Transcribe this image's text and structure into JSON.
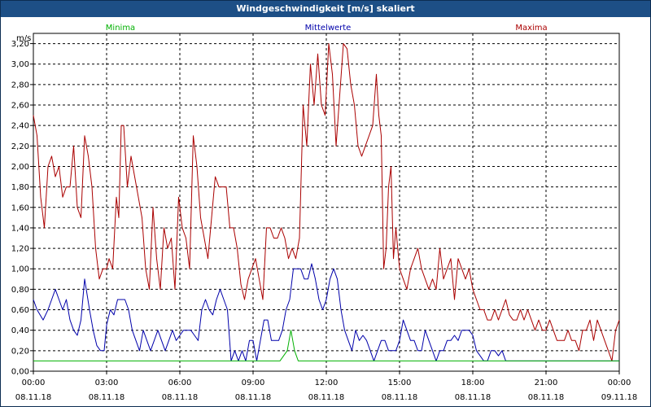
{
  "window": {
    "title": "Windgeschwindigkeit [m/s] skaliert"
  },
  "chart_data": {
    "type": "line",
    "title": "Windgeschwindigkeit [m/s] skaliert",
    "ylabel": "m/s",
    "ylim": [
      0,
      3.3
    ],
    "xlim": [
      0,
      24
    ],
    "grid": true,
    "legend_placement": "top",
    "y_ticks": [
      "0,00",
      "0,20",
      "0,40",
      "0,60",
      "0,80",
      "1,00",
      "1,20",
      "1,40",
      "1,60",
      "1,80",
      "2,00",
      "2,20",
      "2,40",
      "2,60",
      "2,80",
      "3,00",
      "3,20"
    ],
    "x_ticks": [
      {
        "time": "00:00",
        "date": "08.11.18"
      },
      {
        "time": "03:00",
        "date": "08.11.18"
      },
      {
        "time": "06:00",
        "date": "08.11.18"
      },
      {
        "time": "09:00",
        "date": "08.11.18"
      },
      {
        "time": "12:00",
        "date": "08.11.18"
      },
      {
        "time": "15:00",
        "date": "08.11.18"
      },
      {
        "time": "18:00",
        "date": "08.11.18"
      },
      {
        "time": "21:00",
        "date": "08.11.18"
      },
      {
        "time": "00:00",
        "date": "09.11.18"
      }
    ],
    "series": [
      {
        "name": "Minima",
        "color": "#00b000",
        "points": [
          [
            0,
            0.1
          ],
          [
            10.1,
            0.1
          ],
          [
            10.4,
            0.2
          ],
          [
            10.55,
            0.4
          ],
          [
            10.7,
            0.2
          ],
          [
            10.85,
            0.1
          ],
          [
            24,
            0.1
          ]
        ]
      },
      {
        "name": "Mittelwerte",
        "color": "#0000aa",
        "points": [
          [
            0,
            0.7
          ],
          [
            0.15,
            0.6
          ],
          [
            0.4,
            0.5
          ],
          [
            0.6,
            0.6
          ],
          [
            0.75,
            0.7
          ],
          [
            0.9,
            0.8
          ],
          [
            1.05,
            0.7
          ],
          [
            1.2,
            0.6
          ],
          [
            1.35,
            0.7
          ],
          [
            1.5,
            0.5
          ],
          [
            1.65,
            0.4
          ],
          [
            1.8,
            0.35
          ],
          [
            1.95,
            0.5
          ],
          [
            2.1,
            0.9
          ],
          [
            2.3,
            0.6
          ],
          [
            2.45,
            0.4
          ],
          [
            2.6,
            0.25
          ],
          [
            2.75,
            0.2
          ],
          [
            2.9,
            0.2
          ],
          [
            3.0,
            0.45
          ],
          [
            3.15,
            0.6
          ],
          [
            3.3,
            0.55
          ],
          [
            3.45,
            0.7
          ],
          [
            3.6,
            0.7
          ],
          [
            3.75,
            0.7
          ],
          [
            3.9,
            0.6
          ],
          [
            4.05,
            0.4
          ],
          [
            4.2,
            0.3
          ],
          [
            4.35,
            0.2
          ],
          [
            4.5,
            0.4
          ],
          [
            4.65,
            0.3
          ],
          [
            4.8,
            0.2
          ],
          [
            4.95,
            0.3
          ],
          [
            5.1,
            0.4
          ],
          [
            5.25,
            0.3
          ],
          [
            5.4,
            0.2
          ],
          [
            5.55,
            0.3
          ],
          [
            5.7,
            0.4
          ],
          [
            5.85,
            0.3
          ],
          [
            6.0,
            0.35
          ],
          [
            6.15,
            0.4
          ],
          [
            6.3,
            0.4
          ],
          [
            6.45,
            0.4
          ],
          [
            6.6,
            0.35
          ],
          [
            6.75,
            0.3
          ],
          [
            6.9,
            0.6
          ],
          [
            7.05,
            0.7
          ],
          [
            7.2,
            0.6
          ],
          [
            7.35,
            0.55
          ],
          [
            7.5,
            0.7
          ],
          [
            7.65,
            0.8
          ],
          [
            7.8,
            0.7
          ],
          [
            7.95,
            0.6
          ],
          [
            8.1,
            0.1
          ],
          [
            8.25,
            0.2
          ],
          [
            8.4,
            0.1
          ],
          [
            8.55,
            0.2
          ],
          [
            8.7,
            0.1
          ],
          [
            8.85,
            0.3
          ],
          [
            9.0,
            0.3
          ],
          [
            9.15,
            0.1
          ],
          [
            9.3,
            0.3
          ],
          [
            9.45,
            0.5
          ],
          [
            9.6,
            0.5
          ],
          [
            9.75,
            0.3
          ],
          [
            9.9,
            0.3
          ],
          [
            10.05,
            0.3
          ],
          [
            10.2,
            0.4
          ],
          [
            10.35,
            0.6
          ],
          [
            10.5,
            0.7
          ],
          [
            10.65,
            1.0
          ],
          [
            10.8,
            1.0
          ],
          [
            10.95,
            1.0
          ],
          [
            11.1,
            0.9
          ],
          [
            11.25,
            0.9
          ],
          [
            11.4,
            1.05
          ],
          [
            11.55,
            0.9
          ],
          [
            11.7,
            0.7
          ],
          [
            11.85,
            0.6
          ],
          [
            12.0,
            0.7
          ],
          [
            12.15,
            0.9
          ],
          [
            12.3,
            1.0
          ],
          [
            12.45,
            0.9
          ],
          [
            12.6,
            0.6
          ],
          [
            12.75,
            0.4
          ],
          [
            12.9,
            0.3
          ],
          [
            13.05,
            0.2
          ],
          [
            13.2,
            0.4
          ],
          [
            13.35,
            0.3
          ],
          [
            13.5,
            0.35
          ],
          [
            13.65,
            0.3
          ],
          [
            13.8,
            0.2
          ],
          [
            13.95,
            0.1
          ],
          [
            14.1,
            0.2
          ],
          [
            14.25,
            0.3
          ],
          [
            14.4,
            0.3
          ],
          [
            14.55,
            0.2
          ],
          [
            14.7,
            0.2
          ],
          [
            14.85,
            0.2
          ],
          [
            15.0,
            0.3
          ],
          [
            15.15,
            0.5
          ],
          [
            15.3,
            0.4
          ],
          [
            15.45,
            0.3
          ],
          [
            15.6,
            0.3
          ],
          [
            15.75,
            0.2
          ],
          [
            15.9,
            0.2
          ],
          [
            16.05,
            0.4
          ],
          [
            16.2,
            0.3
          ],
          [
            16.35,
            0.2
          ],
          [
            16.5,
            0.1
          ],
          [
            16.65,
            0.2
          ],
          [
            16.8,
            0.2
          ],
          [
            16.95,
            0.3
          ],
          [
            17.1,
            0.3
          ],
          [
            17.25,
            0.35
          ],
          [
            17.4,
            0.3
          ],
          [
            17.55,
            0.4
          ],
          [
            17.7,
            0.4
          ],
          [
            17.85,
            0.4
          ],
          [
            18.0,
            0.35
          ],
          [
            18.15,
            0.2
          ],
          [
            18.3,
            0.15
          ],
          [
            18.45,
            0.1
          ],
          [
            18.6,
            0.1
          ],
          [
            18.75,
            0.2
          ],
          [
            18.9,
            0.2
          ],
          [
            19.05,
            0.15
          ],
          [
            19.2,
            0.2
          ],
          [
            19.35,
            0.1
          ],
          [
            24,
            0.1
          ]
        ]
      },
      {
        "name": "Maxima",
        "color": "#aa0000",
        "points": [
          [
            0,
            2.5
          ],
          [
            0.15,
            2.3
          ],
          [
            0.3,
            1.7
          ],
          [
            0.45,
            1.4
          ],
          [
            0.6,
            2.0
          ],
          [
            0.75,
            2.1
          ],
          [
            0.9,
            1.9
          ],
          [
            1.05,
            2.0
          ],
          [
            1.2,
            1.7
          ],
          [
            1.35,
            1.8
          ],
          [
            1.5,
            1.8
          ],
          [
            1.65,
            2.2
          ],
          [
            1.8,
            1.6
          ],
          [
            1.95,
            1.5
          ],
          [
            2.1,
            2.3
          ],
          [
            2.25,
            2.1
          ],
          [
            2.4,
            1.8
          ],
          [
            2.55,
            1.2
          ],
          [
            2.7,
            0.9
          ],
          [
            2.85,
            1.0
          ],
          [
            3.0,
            1.0
          ],
          [
            3.1,
            1.1
          ],
          [
            3.25,
            1.0
          ],
          [
            3.4,
            1.7
          ],
          [
            3.5,
            1.5
          ],
          [
            3.6,
            2.4
          ],
          [
            3.7,
            2.4
          ],
          [
            3.85,
            1.8
          ],
          [
            4.0,
            2.1
          ],
          [
            4.15,
            1.9
          ],
          [
            4.3,
            1.7
          ],
          [
            4.45,
            1.5
          ],
          [
            4.6,
            1.0
          ],
          [
            4.75,
            0.8
          ],
          [
            4.9,
            1.6
          ],
          [
            5.05,
            1.1
          ],
          [
            5.2,
            0.8
          ],
          [
            5.35,
            1.4
          ],
          [
            5.5,
            1.2
          ],
          [
            5.65,
            1.3
          ],
          [
            5.8,
            0.8
          ],
          [
            5.95,
            1.7
          ],
          [
            6.1,
            1.4
          ],
          [
            6.25,
            1.3
          ],
          [
            6.4,
            1.0
          ],
          [
            6.55,
            2.3
          ],
          [
            6.7,
            2.0
          ],
          [
            6.85,
            1.5
          ],
          [
            7.0,
            1.3
          ],
          [
            7.15,
            1.1
          ],
          [
            7.3,
            1.5
          ],
          [
            7.45,
            1.9
          ],
          [
            7.6,
            1.8
          ],
          [
            7.75,
            1.8
          ],
          [
            7.9,
            1.8
          ],
          [
            8.05,
            1.4
          ],
          [
            8.2,
            1.4
          ],
          [
            8.35,
            1.2
          ],
          [
            8.5,
            0.85
          ],
          [
            8.65,
            0.7
          ],
          [
            8.8,
            0.9
          ],
          [
            8.95,
            1.0
          ],
          [
            9.1,
            1.1
          ],
          [
            9.25,
            0.9
          ],
          [
            9.4,
            0.7
          ],
          [
            9.55,
            1.4
          ],
          [
            9.7,
            1.4
          ],
          [
            9.85,
            1.3
          ],
          [
            10.0,
            1.3
          ],
          [
            10.15,
            1.4
          ],
          [
            10.3,
            1.3
          ],
          [
            10.45,
            1.1
          ],
          [
            10.6,
            1.2
          ],
          [
            10.75,
            1.1
          ],
          [
            10.9,
            1.3
          ],
          [
            11.05,
            2.6
          ],
          [
            11.2,
            2.2
          ],
          [
            11.35,
            3.0
          ],
          [
            11.5,
            2.6
          ],
          [
            11.65,
            3.1
          ],
          [
            11.8,
            2.6
          ],
          [
            11.95,
            2.5
          ],
          [
            12.1,
            3.2
          ],
          [
            12.25,
            2.9
          ],
          [
            12.4,
            2.2
          ],
          [
            12.55,
            2.7
          ],
          [
            12.7,
            3.2
          ],
          [
            12.85,
            3.15
          ],
          [
            13.0,
            2.8
          ],
          [
            13.15,
            2.6
          ],
          [
            13.3,
            2.2
          ],
          [
            13.45,
            2.1
          ],
          [
            13.6,
            2.2
          ],
          [
            13.75,
            2.3
          ],
          [
            13.9,
            2.4
          ],
          [
            14.05,
            2.9
          ],
          [
            14.15,
            2.5
          ],
          [
            14.25,
            2.3
          ],
          [
            14.35,
            1.0
          ],
          [
            14.45,
            1.2
          ],
          [
            14.55,
            1.8
          ],
          [
            14.65,
            2.0
          ],
          [
            14.75,
            1.1
          ],
          [
            14.85,
            1.4
          ],
          [
            15.0,
            1.0
          ],
          [
            15.15,
            0.9
          ],
          [
            15.3,
            0.8
          ],
          [
            15.45,
            1.0
          ],
          [
            15.6,
            1.1
          ],
          [
            15.75,
            1.2
          ],
          [
            15.9,
            1.0
          ],
          [
            16.05,
            0.9
          ],
          [
            16.2,
            0.8
          ],
          [
            16.35,
            0.9
          ],
          [
            16.5,
            0.8
          ],
          [
            16.65,
            1.2
          ],
          [
            16.8,
            0.9
          ],
          [
            16.95,
            1.0
          ],
          [
            17.1,
            1.1
          ],
          [
            17.25,
            0.7
          ],
          [
            17.4,
            1.1
          ],
          [
            17.55,
            1.0
          ],
          [
            17.7,
            0.9
          ],
          [
            17.85,
            1.0
          ],
          [
            18.0,
            0.8
          ],
          [
            18.15,
            0.7
          ],
          [
            18.3,
            0.6
          ],
          [
            18.45,
            0.6
          ],
          [
            18.6,
            0.5
          ],
          [
            18.75,
            0.5
          ],
          [
            18.9,
            0.6
          ],
          [
            19.05,
            0.5
          ],
          [
            19.2,
            0.6
          ],
          [
            19.35,
            0.7
          ],
          [
            19.5,
            0.55
          ],
          [
            19.65,
            0.5
          ],
          [
            19.8,
            0.5
          ],
          [
            19.95,
            0.6
          ],
          [
            20.1,
            0.5
          ],
          [
            20.25,
            0.6
          ],
          [
            20.4,
            0.5
          ],
          [
            20.55,
            0.4
          ],
          [
            20.7,
            0.5
          ],
          [
            20.85,
            0.4
          ],
          [
            21.0,
            0.4
          ],
          [
            21.15,
            0.5
          ],
          [
            21.3,
            0.4
          ],
          [
            21.45,
            0.3
          ],
          [
            21.6,
            0.3
          ],
          [
            21.75,
            0.3
          ],
          [
            21.9,
            0.4
          ],
          [
            22.05,
            0.3
          ],
          [
            22.2,
            0.3
          ],
          [
            22.35,
            0.2
          ],
          [
            22.5,
            0.4
          ],
          [
            22.65,
            0.4
          ],
          [
            22.8,
            0.5
          ],
          [
            22.95,
            0.3
          ],
          [
            23.1,
            0.5
          ],
          [
            23.25,
            0.4
          ],
          [
            23.4,
            0.3
          ],
          [
            23.55,
            0.2
          ],
          [
            23.7,
            0.1
          ],
          [
            23.85,
            0.4
          ],
          [
            24,
            0.5
          ]
        ]
      }
    ]
  }
}
